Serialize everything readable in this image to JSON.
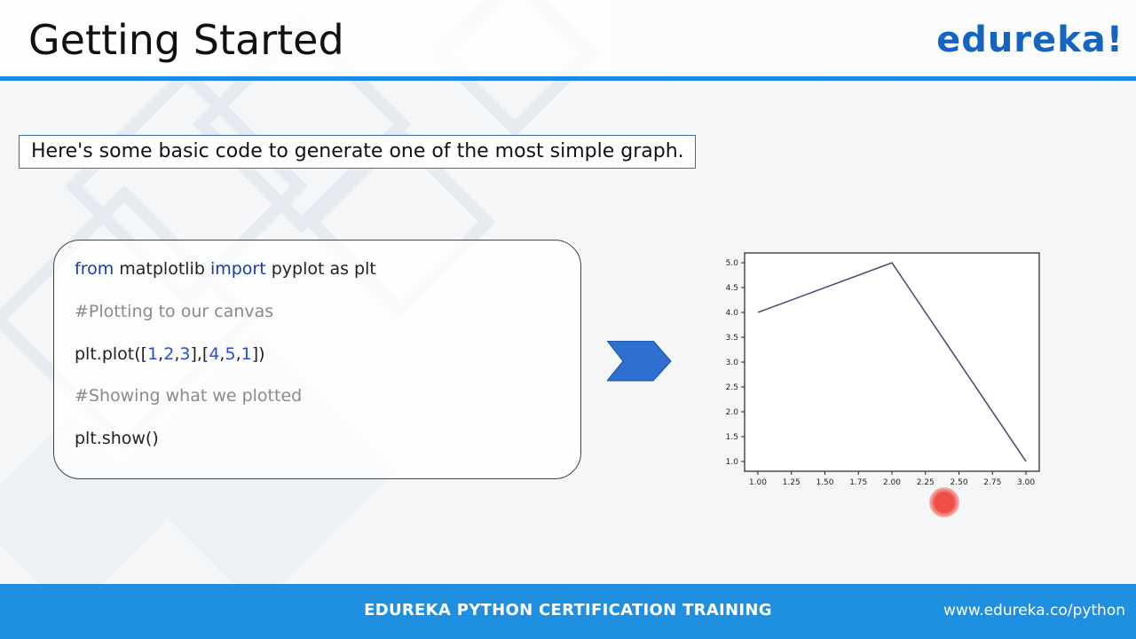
{
  "header": {
    "title": "Getting Started",
    "brand": "edureka!"
  },
  "intro": {
    "text": "Here's some basic code to generate one of the most simple graph."
  },
  "code": {
    "line1": {
      "kw1": "from",
      "t1": " matplotlib ",
      "kw2": "import",
      "t2": " pyplot as plt"
    },
    "comment1": "#Plotting to our canvas",
    "line3": {
      "p1": "plt.plot([",
      "n1": "1",
      "c1": ",",
      "n2": "2",
      "c2": ",",
      "n3": "3",
      "p2": "],[",
      "n4": "4",
      "c3": ",",
      "n5": "5",
      "c4": ",",
      "n6": "1",
      "p3": "])"
    },
    "comment2": "#Showing what we plotted",
    "line5": "plt.show()"
  },
  "chart_data": {
    "type": "line",
    "x": [
      1,
      2,
      3
    ],
    "series": [
      {
        "values": [
          4,
          5,
          1
        ]
      }
    ],
    "xlim": [
      1,
      3
    ],
    "ylim": [
      1,
      5
    ],
    "xticks": [
      "1.00",
      "1.25",
      "1.50",
      "1.75",
      "2.00",
      "2.25",
      "2.50",
      "2.75",
      "3.00"
    ],
    "yticks": [
      "1.0",
      "1.5",
      "2.0",
      "2.5",
      "3.0",
      "3.5",
      "4.0",
      "4.5",
      "5.0"
    ],
    "grid": false,
    "line_color": "#4a5270"
  },
  "footer": {
    "center": "EDUREKA PYTHON CERTIFICATION TRAINING",
    "url": "www.edureka.co/python"
  },
  "colors": {
    "accent": "#1e88e5",
    "footer": "#1f8fe0",
    "brand": "#1565c0",
    "arrow": "#2f6fd0"
  }
}
